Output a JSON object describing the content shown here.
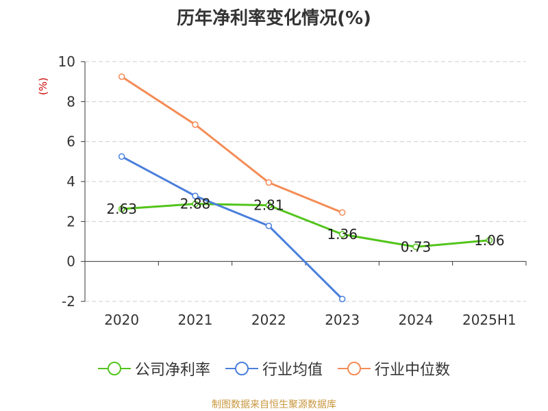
{
  "chart_data": {
    "type": "line",
    "title": "历年净利率变化情况(%)",
    "ylabel": "(%)",
    "categories": [
      "2020",
      "2021",
      "2022",
      "2023",
      "2024",
      "2025H1"
    ],
    "ylim": [
      -2,
      10
    ],
    "yticks": [
      -2,
      0,
      2,
      4,
      6,
      8,
      10
    ],
    "grid": true,
    "legend_position": "bottom",
    "series": [
      {
        "name": "公司净利率",
        "color": "#52c41a",
        "values": [
          2.63,
          2.88,
          2.81,
          1.36,
          0.73,
          1.06
        ],
        "labels": [
          "2.63",
          "2.88",
          "2.81",
          "1.36",
          "0.73",
          "1.06"
        ]
      },
      {
        "name": "行业均值",
        "color": "#4a7fdc",
        "values": [
          5.25,
          3.28,
          1.78,
          -1.88,
          null,
          null
        ]
      },
      {
        "name": "行业中位数",
        "color": "#f48b55",
        "values": [
          9.25,
          6.85,
          3.95,
          2.45,
          null,
          null
        ]
      }
    ]
  },
  "source": "制图数据来自恒生聚源数据库"
}
